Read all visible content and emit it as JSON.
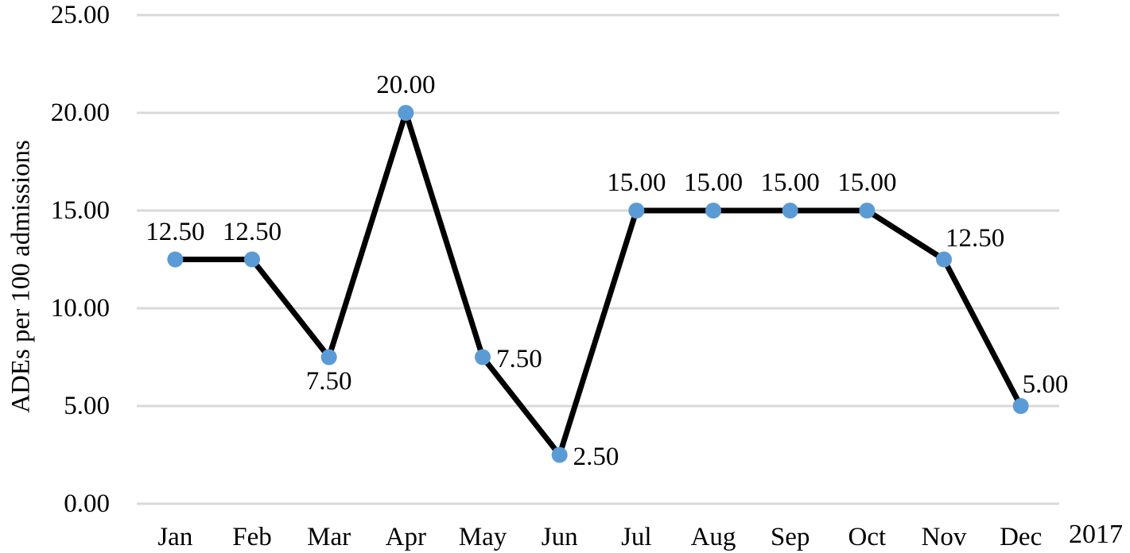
{
  "chart_data": {
    "type": "line",
    "title": "",
    "xlabel": "",
    "ylabel": "ADEs per 100 admissions",
    "year_label": "2017",
    "categories": [
      "Jan",
      "Feb",
      "Mar",
      "Apr",
      "May",
      "Jun",
      "Jul",
      "Aug",
      "Sep",
      "Oct",
      "Nov",
      "Dec"
    ],
    "series": [
      {
        "name": "ADEs per 100 admissions",
        "values": [
          12.5,
          12.5,
          7.5,
          20.0,
          7.5,
          2.5,
          15.0,
          15.0,
          15.0,
          15.0,
          12.5,
          5.0
        ],
        "data_labels": [
          "12.50",
          "12.50",
          "7.50",
          "20.00",
          "7.50",
          "2.50",
          "15.00",
          "15.00",
          "15.00",
          "15.00",
          "12.50",
          "5.00"
        ],
        "label_positions": [
          "above",
          "above",
          "below",
          "above",
          "right",
          "right",
          "above",
          "above",
          "above",
          "above",
          "above-right",
          "above-right"
        ],
        "line_color": "#000000",
        "marker_color": "#5B9BD5",
        "marker_shape": "circle"
      }
    ],
    "ylim": [
      0,
      25
    ],
    "yticks": [
      {
        "value": 0,
        "label": "0.00"
      },
      {
        "value": 5,
        "label": "5.00"
      },
      {
        "value": 10,
        "label": "10.00"
      },
      {
        "value": 15,
        "label": "15.00"
      },
      {
        "value": 20,
        "label": "20.00"
      },
      {
        "value": 25,
        "label": "25.00"
      }
    ],
    "grid": "horizontal-only",
    "gridline_color": "#D9D9D9",
    "legend_position": "none",
    "background_color": "#FFFFFF",
    "text_color": "#000000"
  }
}
